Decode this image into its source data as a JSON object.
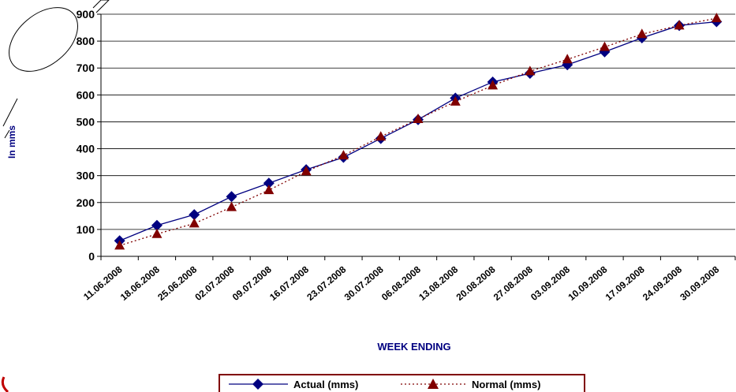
{
  "chart_data": {
    "type": "line",
    "title": "",
    "xlabel": "WEEK ENDING",
    "ylabel": "In mms",
    "ylim": [
      0,
      900
    ],
    "yticks": [
      0,
      100,
      200,
      300,
      400,
      500,
      600,
      700,
      800,
      900
    ],
    "grid": true,
    "legend_position": "bottom",
    "categories": [
      "11.06.2008",
      "18.06.2008",
      "25.06.2008",
      "02.07.2008",
      "09.07.2008",
      "16.07.2008",
      "23.07.2008",
      "30.07.2008",
      "06.08.2008",
      "13.08.2008",
      "20.08.2008",
      "27.08.2008",
      "03.09.2008",
      "10.09.2008",
      "17.09.2008",
      "24.09.2008",
      "30.09.2008"
    ],
    "series": [
      {
        "name": "Actual (mms)",
        "color": "#000080",
        "marker": "diamond",
        "line": "solid",
        "values": [
          58,
          115,
          155,
          222,
          272,
          322,
          368,
          438,
          508,
          588,
          648,
          680,
          712,
          760,
          812,
          858,
          872
        ]
      },
      {
        "name": "Normal (mms)",
        "color": "#800000",
        "marker": "triangle",
        "line": "dotted",
        "values": [
          40,
          83,
          122,
          183,
          246,
          316,
          375,
          445,
          510,
          575,
          635,
          688,
          732,
          778,
          826,
          858,
          885
        ]
      }
    ]
  },
  "colors": {
    "grid": "#000000",
    "legend_border": "#800000",
    "axis_title": "#000080",
    "watermark": "#c00000"
  }
}
